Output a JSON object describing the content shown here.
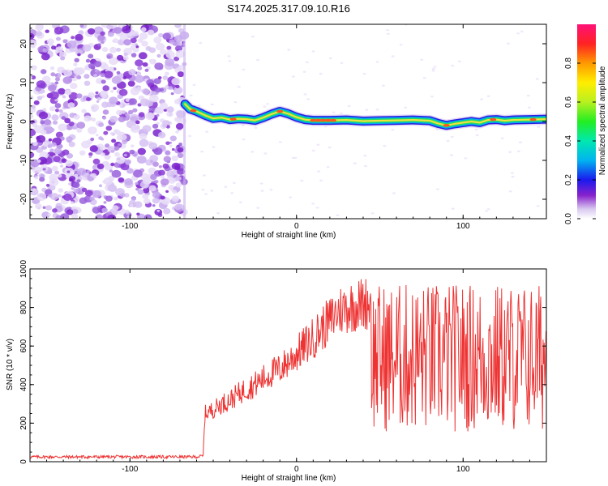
{
  "title": "S174.2025.317.09.10.R16",
  "chart_data": [
    {
      "type": "heatmap",
      "name": "spectrogram",
      "xlabel": "Height of straight line (km)",
      "ylabel": "Frequency (Hz)",
      "xlim": [
        -160,
        150
      ],
      "ylim": [
        -25,
        25
      ],
      "xticks": [
        -100,
        0,
        100
      ],
      "yticks": [
        -20,
        -10,
        0,
        10,
        20
      ],
      "noise_region_x": [
        -160,
        -67
      ],
      "track": [
        [
          -67,
          4.5
        ],
        [
          -64,
          3.2
        ],
        [
          -60,
          2.6
        ],
        [
          -55,
          1.6
        ],
        [
          -50,
          0.8
        ],
        [
          -45,
          1.0
        ],
        [
          -40,
          0.5
        ],
        [
          -35,
          0.7
        ],
        [
          -30,
          0.6
        ],
        [
          -25,
          0.3
        ],
        [
          -20,
          1.0
        ],
        [
          -15,
          1.9
        ],
        [
          -10,
          2.6
        ],
        [
          -5,
          2.0
        ],
        [
          0,
          1.1
        ],
        [
          5,
          0.5
        ],
        [
          10,
          0.3
        ],
        [
          20,
          0.3
        ],
        [
          30,
          0.4
        ],
        [
          40,
          0.1
        ],
        [
          50,
          0.2
        ],
        [
          60,
          0.3
        ],
        [
          70,
          0.4
        ],
        [
          80,
          0.2
        ],
        [
          85,
          -0.5
        ],
        [
          90,
          -1.0
        ],
        [
          95,
          -0.6
        ],
        [
          100,
          -0.3
        ],
        [
          105,
          0.0
        ],
        [
          110,
          -0.3
        ],
        [
          115,
          0.4
        ],
        [
          120,
          0.5
        ],
        [
          125,
          0.2
        ],
        [
          130,
          0.4
        ],
        [
          140,
          0.5
        ],
        [
          150,
          0.6
        ]
      ],
      "colorbar": {
        "label": "Normalized spectral amplitude",
        "range": [
          0.0,
          1.0
        ],
        "ticks": [
          "0.0",
          "0.2",
          "0.4",
          "0.6",
          "0.8"
        ]
      }
    },
    {
      "type": "line",
      "name": "snr",
      "xlabel": "Height of straight line (km)",
      "ylabel": "SNR (10 * v/v)",
      "xlim": [
        -160,
        150
      ],
      "ylim": [
        0,
        1000
      ],
      "xticks": [
        -100,
        0,
        100
      ],
      "yticks": [
        0,
        200,
        400,
        600,
        800,
        1000
      ],
      "color": "#ee3333",
      "series": [
        {
          "name": "SNR",
          "x": [
            -160,
            -140,
            -120,
            -100,
            -80,
            -60,
            -56,
            -55,
            -50,
            -45,
            -40,
            -35,
            -30,
            -25,
            -20,
            -15,
            -10,
            -5,
            0,
            5,
            10,
            15,
            20,
            25,
            30,
            35,
            40,
            45,
            50,
            60,
            70,
            80,
            90,
            100,
            110,
            120,
            130,
            140,
            150
          ],
          "values": [
            25,
            25,
            25,
            25,
            25,
            25,
            30,
            250,
            270,
            300,
            320,
            350,
            380,
            400,
            430,
            460,
            480,
            520,
            560,
            600,
            640,
            690,
            730,
            780,
            800,
            810,
            820,
            830,
            650,
            620,
            600,
            610,
            600,
            590,
            600,
            620,
            610,
            600,
            600
          ]
        }
      ]
    }
  ]
}
